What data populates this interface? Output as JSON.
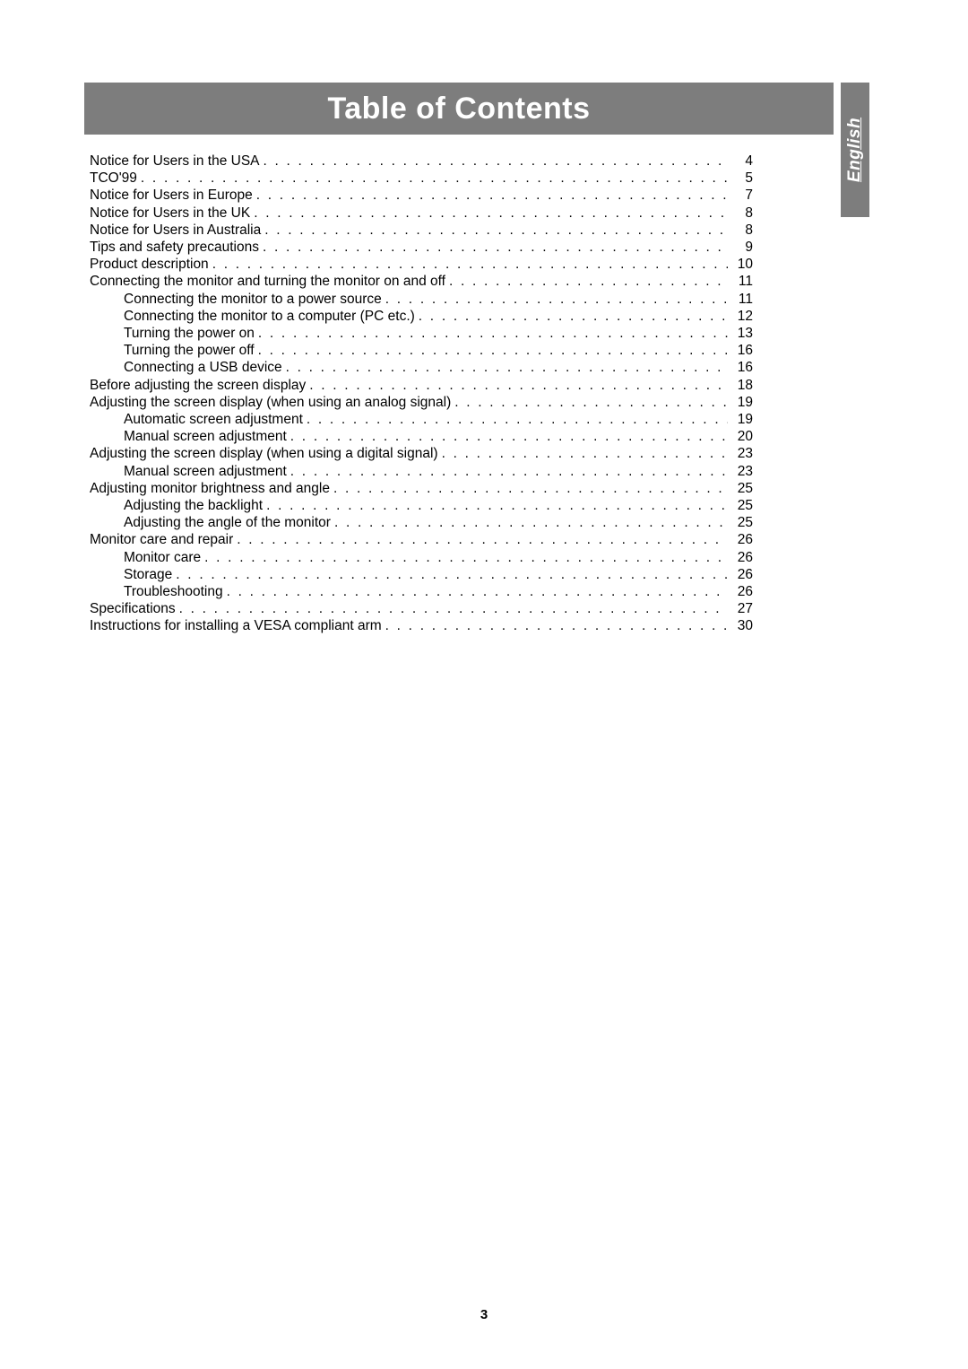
{
  "header": {
    "title": "Table of Contents",
    "bg_color": "#7d7d7d",
    "text_color": "#ffffff"
  },
  "side_tab": {
    "label": "English",
    "bg_color": "#7d7d7d",
    "text_color": "#ffffff"
  },
  "page_number": "3",
  "toc": {
    "entries": [
      {
        "label": "Notice for Users in the USA",
        "page": "4",
        "indent": 0
      },
      {
        "label": "TCO'99",
        "page": "5",
        "indent": 0
      },
      {
        "label": "Notice for Users in Europe",
        "page": "7",
        "indent": 0
      },
      {
        "label": "Notice for Users in the UK",
        "page": "8",
        "indent": 0
      },
      {
        "label": "Notice for Users in Australia",
        "page": "8",
        "indent": 0
      },
      {
        "label": "Tips and safety precautions",
        "page": "9",
        "indent": 0
      },
      {
        "label": "Product description",
        "page": "10",
        "indent": 0
      },
      {
        "label": "Connecting the monitor and turning the monitor on and off",
        "page": "11",
        "indent": 0
      },
      {
        "label": "Connecting the monitor to a power source",
        "page": "11",
        "indent": 1
      },
      {
        "label": "Connecting the monitor to a computer (PC etc.)",
        "page": "12",
        "indent": 1
      },
      {
        "label": "Turning the power on",
        "page": "13",
        "indent": 1
      },
      {
        "label": "Turning the power off",
        "page": "16",
        "indent": 1
      },
      {
        "label": "Connecting a USB device",
        "page": "16",
        "indent": 1
      },
      {
        "label": "Before adjusting the screen display",
        "page": "18",
        "indent": 0
      },
      {
        "label": "Adjusting the screen display (when using an analog signal)",
        "page": "19",
        "indent": 0
      },
      {
        "label": "Automatic screen adjustment",
        "page": "19",
        "indent": 1
      },
      {
        "label": "Manual screen adjustment",
        "page": "20",
        "indent": 1
      },
      {
        "label": "Adjusting the screen display (when using a digital signal)",
        "page": "23",
        "indent": 0
      },
      {
        "label": "Manual screen adjustment",
        "page": "23",
        "indent": 1
      },
      {
        "label": "Adjusting monitor brightness and angle",
        "page": "25",
        "indent": 0
      },
      {
        "label": "Adjusting the backlight",
        "page": "25",
        "indent": 1
      },
      {
        "label": "Adjusting the angle of the monitor",
        "page": "25",
        "indent": 1
      },
      {
        "label": "Monitor care and repair",
        "page": "26",
        "indent": 0
      },
      {
        "label": "Monitor care",
        "page": "26",
        "indent": 1
      },
      {
        "label": "Storage",
        "page": "26",
        "indent": 1
      },
      {
        "label": "Troubleshooting",
        "page": "26",
        "indent": 1
      },
      {
        "label": "Specifications",
        "page": "27",
        "indent": 0
      },
      {
        "label": "Instructions for installing a VESA compliant arm",
        "page": "30",
        "indent": 0
      }
    ]
  }
}
